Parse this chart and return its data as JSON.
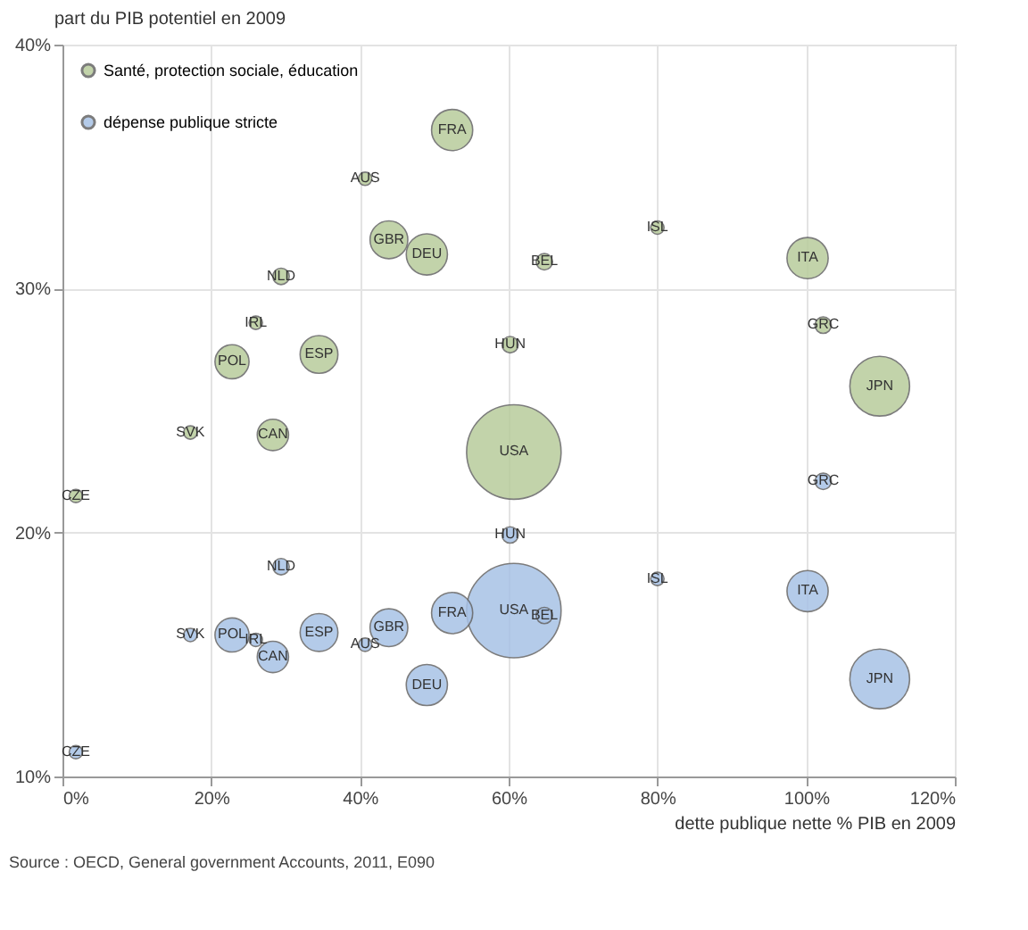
{
  "chart_data": {
    "type": "bubble",
    "xlabel": "dette publique nette % PIB en 2009",
    "ylabel": "part du PIB potentiel en 2009",
    "xlim": [
      0,
      120
    ],
    "xticks": [
      {
        "value": 0,
        "label": "0%"
      },
      {
        "value": 20,
        "label": "20%"
      },
      {
        "value": 40,
        "label": "40%"
      },
      {
        "value": 60,
        "label": "60%"
      },
      {
        "value": 80,
        "label": "80%"
      },
      {
        "value": 100,
        "label": "100%"
      },
      {
        "value": 120,
        "label": "120%"
      }
    ],
    "ylim": [
      10,
      40
    ],
    "yticks": [
      {
        "value": 10,
        "label": "10%"
      },
      {
        "value": 20,
        "label": "20%"
      },
      {
        "value": 30,
        "label": "30%"
      },
      {
        "value": 40,
        "label": "40%"
      }
    ],
    "grid": true,
    "legend": "top left",
    "series": [
      {
        "name": "Santé, protection sociale, éducation",
        "color": "#b8cc9c",
        "x": [
          52.4,
          40.7,
          43.9,
          49,
          29.4,
          64.8,
          80,
          100.2,
          26,
          22.8,
          34.5,
          60.2,
          102.3,
          109.9,
          17.2,
          28.3,
          60.7,
          1.8
        ],
        "values": [
          36.5,
          34.5,
          32,
          31.4,
          30.5,
          31.1,
          32.5,
          31.25,
          28.6,
          27,
          27.3,
          27.7,
          28.5,
          26,
          24.1,
          24,
          23.3,
          21.5
        ],
        "sizes": [
          0.19,
          0.02,
          0.16,
          0.19,
          0.03,
          0.03,
          0.02,
          0.19,
          0.02,
          0.13,
          0.16,
          0.03,
          0.03,
          0.4,
          0.02,
          0.11,
          1,
          0.02
        ]
      },
      {
        "name": "dépense publique stricte",
        "color": "#a8c2e6",
        "x": [
          52.4,
          40.7,
          43.9,
          49,
          29.4,
          64.8,
          80,
          100.2,
          26,
          22.8,
          34.5,
          60.2,
          102.3,
          109.9,
          17.2,
          28.3,
          60.7,
          1.8
        ],
        "values": [
          16.7,
          15.4,
          16.1,
          13.75,
          18.6,
          16.6,
          18.1,
          17.6,
          15.6,
          15.8,
          15.9,
          19.9,
          22.1,
          14,
          15.8,
          14.9,
          16.8,
          11
        ],
        "sizes": [
          0.19,
          0.02,
          0.16,
          0.19,
          0.03,
          0.03,
          0.02,
          0.19,
          0.02,
          0.13,
          0.16,
          0.03,
          0.03,
          0.4,
          0.02,
          0.11,
          1,
          0.02
        ]
      }
    ],
    "annotations": [
      {
        "text": "FRA",
        "x": 52.4,
        "y": 36.5
      },
      {
        "text": "AUS",
        "x": 40.7,
        "y": 34.5
      },
      {
        "text": "GBR",
        "x": 43.9,
        "y": 32
      },
      {
        "text": "DEU",
        "x": 49,
        "y": 31.4
      },
      {
        "text": "NLD",
        "x": 29.4,
        "y": 30.5
      },
      {
        "text": "BEL",
        "x": 64.8,
        "y": 31.1
      },
      {
        "text": "ISL",
        "x": 80,
        "y": 32.5
      },
      {
        "text": "ITA",
        "x": 100.2,
        "y": 31.25
      },
      {
        "text": "IRL",
        "x": 26,
        "y": 28.6
      },
      {
        "text": "POL",
        "x": 22.8,
        "y": 27
      },
      {
        "text": "ESP",
        "x": 34.5,
        "y": 27.3
      },
      {
        "text": "HUN",
        "x": 60.2,
        "y": 27.7
      },
      {
        "text": "GRC",
        "x": 102.3,
        "y": 28.5
      },
      {
        "text": "JPN",
        "x": 109.9,
        "y": 26
      },
      {
        "text": "SVK",
        "x": 17.2,
        "y": 24.1
      },
      {
        "text": "CAN",
        "x": 28.3,
        "y": 24
      },
      {
        "text": "USA",
        "x": 60.7,
        "y": 23.3
      },
      {
        "text": "CZE",
        "x": 1.8,
        "y": 21.5
      },
      {
        "text": "FRA",
        "x": 52.4,
        "y": 16.7
      },
      {
        "text": "AUS",
        "x": 40.7,
        "y": 15.4
      },
      {
        "text": "GBR",
        "x": 43.9,
        "y": 16.1
      },
      {
        "text": "DEU",
        "x": 49,
        "y": 13.75
      },
      {
        "text": "NLD",
        "x": 29.4,
        "y": 18.6
      },
      {
        "text": "BEL",
        "x": 64.8,
        "y": 16.6
      },
      {
        "text": "ISL",
        "x": 80,
        "y": 18.1
      },
      {
        "text": "ITA",
        "x": 100.2,
        "y": 17.6
      },
      {
        "text": "IRL",
        "x": 26,
        "y": 15.6
      },
      {
        "text": "POL",
        "x": 22.8,
        "y": 15.8
      },
      {
        "text": "ESP",
        "x": 34.5,
        "y": 15.9
      },
      {
        "text": "HUN",
        "x": 60.2,
        "y": 19.9
      },
      {
        "text": "GRC",
        "x": 102.3,
        "y": 22.1
      },
      {
        "text": "JPN",
        "x": 109.9,
        "y": 14
      },
      {
        "text": "SVK",
        "x": 17.2,
        "y": 15.8
      },
      {
        "text": "CAN",
        "x": 28.3,
        "y": 14.9
      },
      {
        "text": "USA",
        "x": 60.7,
        "y": 16.8
      },
      {
        "text": "CZE",
        "x": 1.8,
        "y": 11
      },
      "Source : OECD, General government Accounts, 2011, E090"
    ]
  }
}
